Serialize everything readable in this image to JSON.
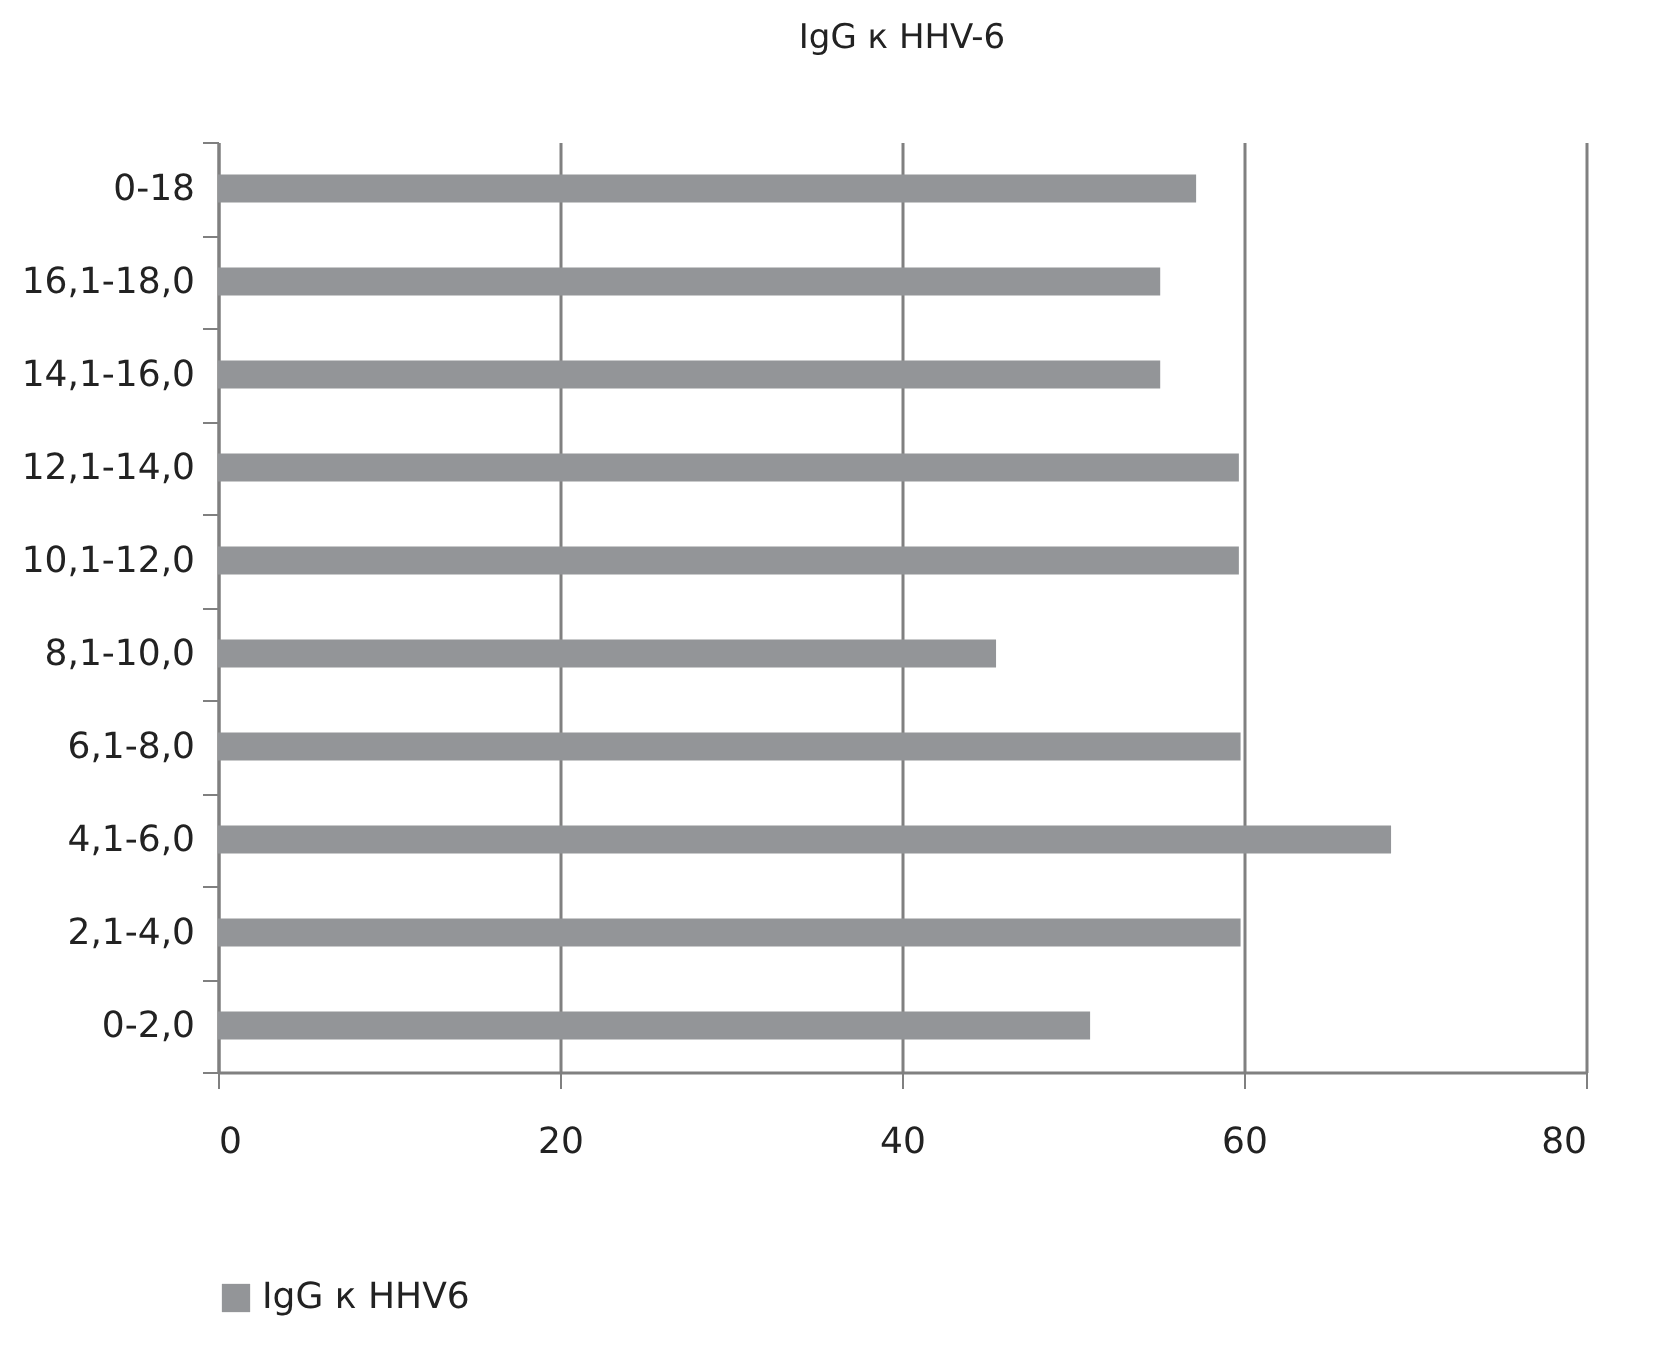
{
  "chart_data": {
    "type": "bar",
    "orientation": "horizontal",
    "title": "IgG к HHV-6",
    "categories": [
      "0-18",
      "16,1-18,0",
      "14,1-16,0",
      "12,1-14,0",
      "10,1-12,0",
      "8,1-10,0",
      "6,1-8,0",
      "4,1-6,0",
      "2,1-4,0",
      "0-2,0"
    ],
    "series": [
      {
        "name": "IgG к HHV6",
        "color": "#939598",
        "values": [
          57.2,
          55.1,
          55.1,
          59.7,
          59.7,
          45.5,
          59.8,
          68.6,
          59.8,
          51.0
        ]
      }
    ],
    "xlim": [
      0,
      80
    ],
    "xticks": [
      0,
      20,
      40,
      60,
      80
    ],
    "grid": "x",
    "legend": "bottom"
  }
}
